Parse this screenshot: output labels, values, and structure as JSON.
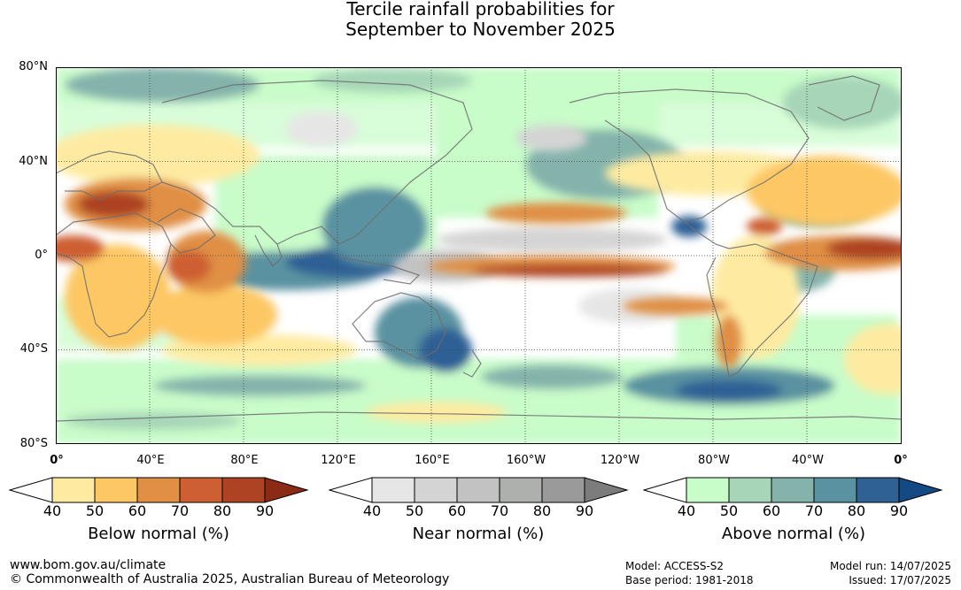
{
  "title": {
    "line1": "Tercile rainfall probabilities for",
    "line2": "September to November 2025"
  },
  "map": {
    "lat_labels": [
      "80°N",
      "40°N",
      "0°",
      "40°S",
      "80°S"
    ],
    "lon_labels": [
      "0°",
      "40°E",
      "80°E",
      "120°E",
      "160°E",
      "160°W",
      "120°W",
      "80°W",
      "40°W",
      "0°"
    ],
    "extent": {
      "lon_start": 0,
      "lon_end": 360,
      "lat_top": 80,
      "lat_bottom": -80
    },
    "grid": "dotted"
  },
  "legends": [
    {
      "id": "below",
      "title": "Below normal (%)",
      "ticks": [
        "40",
        "50",
        "60",
        "70",
        "80",
        "90"
      ],
      "colors": [
        "#ffffff",
        "#feeba1",
        "#fdc763",
        "#e08f45",
        "#cd5f32",
        "#ad4322",
        "#8b2a15"
      ]
    },
    {
      "id": "near",
      "title": "Near normal (%)",
      "ticks": [
        "40",
        "50",
        "60",
        "70",
        "80",
        "90"
      ],
      "colors": [
        "#ffffff",
        "#e6e6e6",
        "#d4d4d4",
        "#c2c2c2",
        "#adb0ad",
        "#9a9a9a",
        "#7c7c7c"
      ]
    },
    {
      "id": "above",
      "title": "Above normal (%)",
      "ticks": [
        "40",
        "50",
        "60",
        "70",
        "80",
        "90"
      ],
      "colors": [
        "#ffffff",
        "#c8fcc9",
        "#a6d6b7",
        "#84b3ac",
        "#5a92a1",
        "#2f6195",
        "#134a84"
      ]
    }
  ],
  "footer": {
    "website": "www.bom.gov.au/climate",
    "copyright": "© Commonwealth of Australia 2025, Australian Bureau of Meteorology",
    "model": "Model: ACCESS-S2",
    "base_period": "Base period: 1981-2018",
    "model_run": "Model run: 14/07/2025",
    "issued": "Issued: 17/07/2025"
  }
}
